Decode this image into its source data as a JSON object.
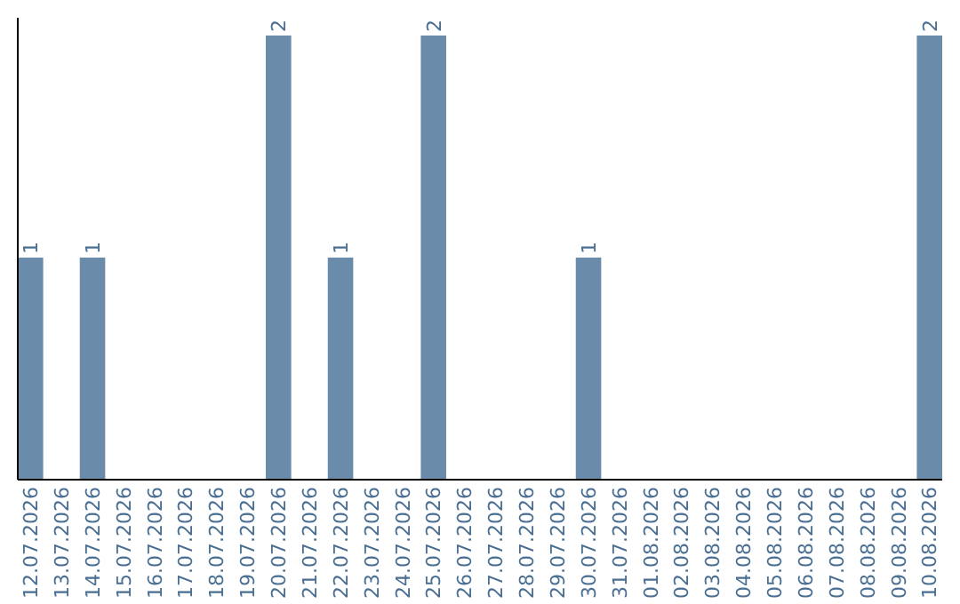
{
  "chart_data": {
    "type": "bar",
    "categories": [
      "12.07.2026",
      "13.07.2026",
      "14.07.2026",
      "15.07.2026",
      "16.07.2026",
      "17.07.2026",
      "18.07.2026",
      "19.07.2026",
      "20.07.2026",
      "21.07.2026",
      "22.07.2026",
      "23.07.2026",
      "24.07.2026",
      "25.07.2026",
      "26.07.2026",
      "27.07.2026",
      "28.07.2026",
      "29.07.2026",
      "30.07.2026",
      "31.07.2026",
      "01.08.2026",
      "02.08.2026",
      "03.08.2026",
      "04.08.2026",
      "05.08.2026",
      "06.08.2026",
      "07.08.2026",
      "08.08.2026",
      "09.08.2026",
      "10.08.2026"
    ],
    "values": [
      1,
      0,
      1,
      0,
      0,
      0,
      0,
      0,
      2,
      0,
      1,
      0,
      0,
      2,
      0,
      0,
      0,
      0,
      1,
      0,
      0,
      0,
      0,
      0,
      0,
      0,
      0,
      0,
      0,
      2
    ],
    "value_labels": [
      "1",
      null,
      "1",
      null,
      null,
      null,
      null,
      null,
      "2",
      null,
      "1",
      null,
      null,
      "2",
      null,
      null,
      null,
      null,
      "1",
      null,
      null,
      null,
      null,
      null,
      null,
      null,
      null,
      null,
      null,
      "2"
    ],
    "color": "#6a8caa",
    "ylim": [
      0,
      2
    ],
    "tick_labels": "x"
  }
}
